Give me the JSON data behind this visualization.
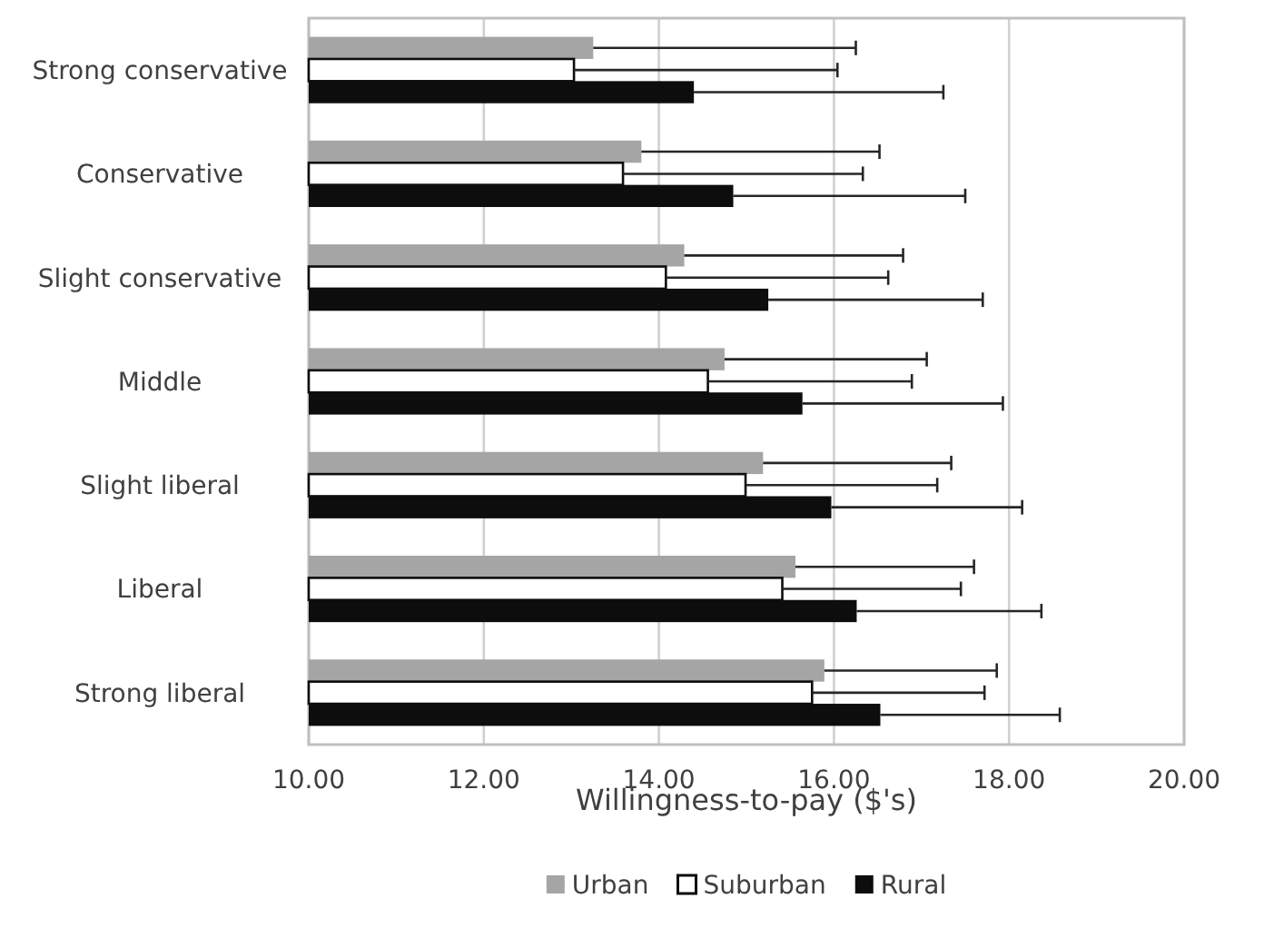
{
  "chart_data": {
    "type": "bar",
    "orientation": "horizontal",
    "xlabel": "Willingness-to-pay ($'s)",
    "categories": [
      "Strong conservative",
      "Conservative",
      "Slight conservative",
      "Middle",
      "Slight liberal",
      "Liberal",
      "Strong liberal"
    ],
    "series": [
      {
        "name": "Urban",
        "color": "#a5a5a5",
        "values": [
          13.25,
          13.8,
          14.29,
          14.75,
          15.19,
          15.56,
          15.89
        ],
        "errors": [
          [
            13.25,
            16.25
          ],
          [
            13.8,
            16.52
          ],
          [
            14.29,
            16.79
          ],
          [
            14.75,
            17.06
          ],
          [
            15.19,
            17.34
          ],
          [
            15.56,
            17.6
          ],
          [
            15.89,
            17.86
          ]
        ]
      },
      {
        "name": "Suburban",
        "color": "#ffffff",
        "values": [
          13.03,
          13.59,
          14.08,
          14.56,
          14.99,
          15.41,
          15.75
        ],
        "errors": [
          [
            13.03,
            16.04
          ],
          [
            13.59,
            16.33
          ],
          [
            14.08,
            16.62
          ],
          [
            14.56,
            16.89
          ],
          [
            14.99,
            17.18
          ],
          [
            15.41,
            17.45
          ],
          [
            15.75,
            17.72
          ]
        ]
      },
      {
        "name": "Rural",
        "color": "#0d0d0d",
        "values": [
          14.4,
          14.85,
          15.25,
          15.64,
          15.97,
          16.26,
          16.53
        ],
        "errors": [
          [
            14.4,
            17.25
          ],
          [
            14.85,
            17.5
          ],
          [
            15.25,
            17.7
          ],
          [
            15.64,
            17.93
          ],
          [
            15.97,
            18.15
          ],
          [
            16.26,
            18.37
          ],
          [
            16.53,
            18.58
          ]
        ]
      }
    ],
    "xlim": [
      10,
      20
    ],
    "xticks": [
      {
        "value": 10,
        "label": "10.00"
      },
      {
        "value": 12,
        "label": "12.00"
      },
      {
        "value": 14,
        "label": "14.00"
      },
      {
        "value": 16,
        "label": "16.00"
      },
      {
        "value": 18,
        "label": "18.00"
      },
      {
        "value": 20,
        "label": "20.00"
      }
    ],
    "grid": "x",
    "legend": "bottom"
  }
}
